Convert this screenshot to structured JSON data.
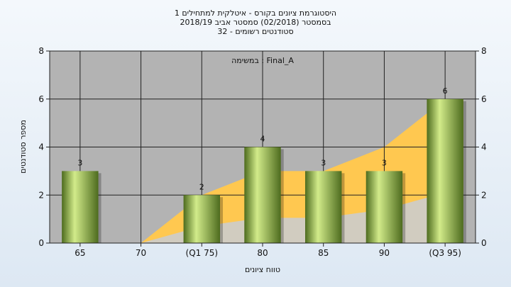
{
  "chart_data": {
    "type": "bar",
    "title_lines": [
      "היסטוגרמת ציונים בקורס - איטלקית למתחילים 1",
      "בסמסטר  (02/2018)  סמסטר אביב 2018/19",
      "סטודנטים רשומים - 32"
    ],
    "annotation": "במשימה : Final_A",
    "xlabel": "טווח ציונים",
    "ylabel": "מספר סטודנטים",
    "categories": [
      "65",
      "70",
      "(Q1 75)",
      "80",
      "85",
      "90",
      "(Q3 95)"
    ],
    "values": [
      3,
      0,
      2,
      4,
      3,
      3,
      6
    ],
    "bar_labels": [
      "3",
      "",
      "2",
      "4",
      "3",
      "3",
      "6"
    ],
    "ylim": [
      0,
      8
    ],
    "yticks": [
      0,
      2,
      4,
      6,
      8
    ],
    "area_series": {
      "x": [
        "70",
        "(Q1 75)",
        "80",
        "85",
        "90",
        "(Q3 95)"
      ],
      "values": [
        0,
        2,
        3,
        3,
        4,
        6
      ]
    },
    "grid": true,
    "colors": {
      "plot_bg": "#b3b3b3",
      "area_upper": "#ffc850",
      "area_lower": "#cccccc",
      "bar_light": "#d2eb8a",
      "bar_dark": "#4d6b1e"
    }
  }
}
